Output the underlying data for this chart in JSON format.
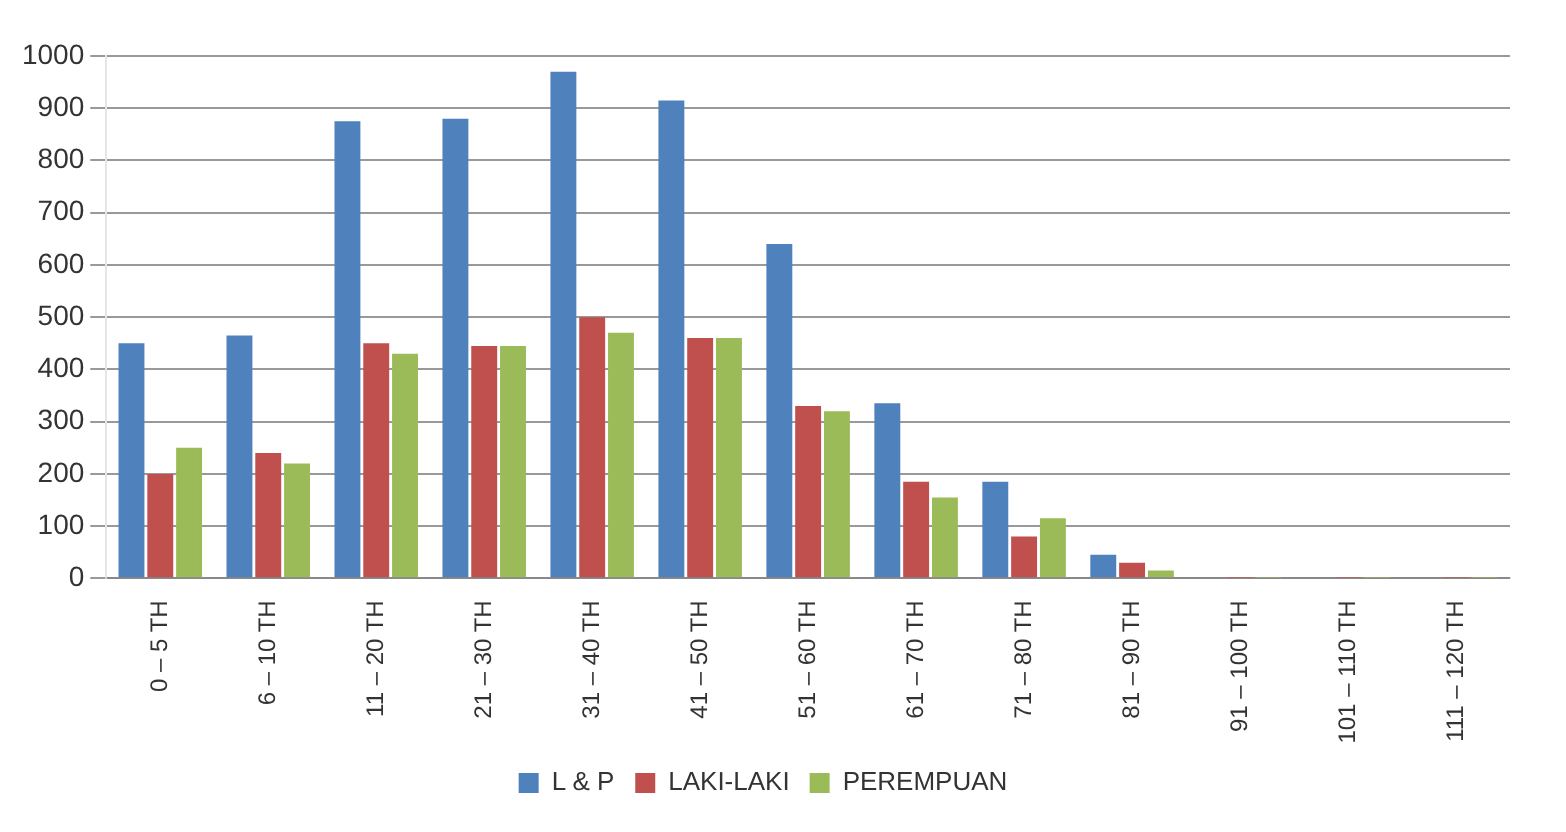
{
  "chart_data": {
    "type": "bar",
    "categories": [
      "0 – 5 TH",
      "6 – 10 TH",
      "11 – 20 TH",
      "21 – 30 TH",
      "31 – 40 TH",
      "41 – 50 TH",
      "51 – 60 TH",
      "61 – 70 TH",
      "71 – 80 TH",
      "81 – 90 TH",
      "91 – 100 TH",
      "101 – 110 TH",
      "111 – 120 TH"
    ],
    "series": [
      {
        "name": "L & P",
        "color": "#4f81bd",
        "values": [
          450,
          465,
          875,
          880,
          970,
          915,
          640,
          335,
          185,
          45,
          2,
          2,
          2
        ]
      },
      {
        "name": "LAKI-LAKI",
        "color": "#c0504d",
        "values": [
          200,
          240,
          450,
          445,
          500,
          460,
          330,
          185,
          80,
          30,
          1,
          1,
          1
        ]
      },
      {
        "name": "PEREMPUAN",
        "color": "#9bbb59",
        "values": [
          250,
          220,
          430,
          445,
          470,
          460,
          320,
          155,
          115,
          15,
          1,
          1,
          1
        ]
      }
    ],
    "ylim": [
      0,
      1000
    ],
    "yticks": [
      0,
      100,
      200,
      300,
      400,
      500,
      600,
      700,
      800,
      900,
      1000
    ],
    "grid": "y",
    "legend": "bottom"
  }
}
